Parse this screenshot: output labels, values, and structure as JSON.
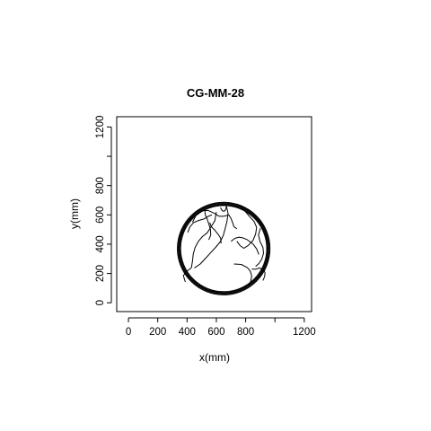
{
  "chart_data": {
    "type": "line",
    "title": "CG-MM-28",
    "xlabel": "x(mm)",
    "ylabel": "y(mm)",
    "xlim": [
      -80,
      1250
    ],
    "ylim": [
      -60,
      1270
    ],
    "x_ticks": [
      0,
      200,
      400,
      600,
      800,
      1000,
      1200
    ],
    "x_tick_labels": [
      "0",
      "200",
      "400",
      "600",
      "800",
      "",
      "1200"
    ],
    "y_ticks": [
      0,
      200,
      400,
      600,
      800,
      1000,
      1200
    ],
    "y_tick_labels": [
      "0",
      "200",
      "400",
      "600",
      "800",
      "",
      "1200"
    ],
    "grid": false,
    "line_color": "#000000",
    "arena": {
      "center": [
        650,
        370
      ],
      "radius": 305
    },
    "series": [
      {
        "points": [
          [
            437,
            550
          ],
          [
            460,
            595
          ],
          [
            500,
            628
          ],
          [
            545,
            630
          ],
          [
            585,
            612
          ],
          [
            620,
            590
          ],
          [
            650,
            590
          ],
          [
            685,
            600
          ],
          [
            700,
            575
          ],
          [
            712,
            545
          ],
          [
            720,
            520
          ],
          [
            740,
            505
          ]
        ]
      },
      {
        "points": [
          [
            600,
            620
          ],
          [
            590,
            560
          ],
          [
            565,
            520
          ],
          [
            538,
            478
          ],
          [
            505,
            452
          ],
          [
            478,
            420
          ],
          [
            455,
            378
          ],
          [
            442,
            332
          ],
          [
            438,
            290
          ],
          [
            430,
            240
          ],
          [
            395,
            212
          ],
          [
            375,
            185
          ],
          [
            388,
            142
          ]
        ]
      },
      {
        "points": [
          [
            450,
            238
          ],
          [
            490,
            265
          ],
          [
            528,
            305
          ],
          [
            560,
            340
          ],
          [
            595,
            378
          ],
          [
            628,
            418
          ],
          [
            648,
            462
          ],
          [
            660,
            505
          ],
          [
            672,
            552
          ],
          [
            680,
            610
          ],
          [
            668,
            665
          ]
        ]
      },
      {
        "points": [
          [
            765,
            665
          ],
          [
            800,
            620
          ],
          [
            830,
            585
          ],
          [
            858,
            555
          ],
          [
            875,
            515
          ],
          [
            868,
            470
          ],
          [
            850,
            425
          ],
          [
            818,
            392
          ],
          [
            788,
            372
          ],
          [
            762,
            390
          ],
          [
            740,
            420
          ]
        ]
      },
      {
        "points": [
          [
            520,
            640
          ],
          [
            525,
            598
          ],
          [
            538,
            570
          ],
          [
            548,
            538
          ],
          [
            560,
            500
          ],
          [
            562,
            462
          ],
          [
            548,
            430
          ]
        ]
      },
      {
        "points": [
          [
            868,
            248
          ],
          [
            890,
            268
          ],
          [
            910,
            298
          ],
          [
            922,
            338
          ],
          [
            918,
            378
          ],
          [
            898,
            418
          ],
          [
            888,
            462
          ],
          [
            900,
            508
          ]
        ]
      },
      {
        "points": [
          [
            700,
            420
          ],
          [
            728,
            440
          ],
          [
            756,
            448
          ],
          [
            785,
            442
          ],
          [
            812,
            430
          ],
          [
            850,
            402
          ],
          [
            875,
            368
          ],
          [
            890,
            330
          ]
        ]
      },
      {
        "points": [
          [
            720,
            265
          ],
          [
            770,
            262
          ],
          [
            812,
            240
          ],
          [
            832,
            215
          ],
          [
            842,
            180
          ],
          [
            832,
            140
          ]
        ]
      },
      {
        "points": [
          [
            405,
            480
          ],
          [
            420,
            520
          ],
          [
            445,
            548
          ],
          [
            480,
            562
          ],
          [
            515,
            572
          ],
          [
            545,
            590
          ],
          [
            570,
            600
          ]
        ]
      },
      {
        "points": [
          [
            842,
            230
          ],
          [
            870,
            230
          ],
          [
            896,
            238
          ],
          [
            918,
            226
          ],
          [
            932,
            208
          ],
          [
            930,
            180
          ],
          [
            918,
            152
          ]
        ]
      },
      {
        "points": [
          [
            628,
            650
          ],
          [
            640,
            628
          ],
          [
            655,
            625
          ],
          [
            665,
            640
          ],
          [
            668,
            658
          ]
        ]
      },
      {
        "points": [
          [
            555,
            548
          ],
          [
            565,
            520
          ],
          [
            590,
            495
          ],
          [
            612,
            468
          ],
          [
            630,
            440
          ],
          [
            632,
            405
          ]
        ]
      }
    ]
  }
}
